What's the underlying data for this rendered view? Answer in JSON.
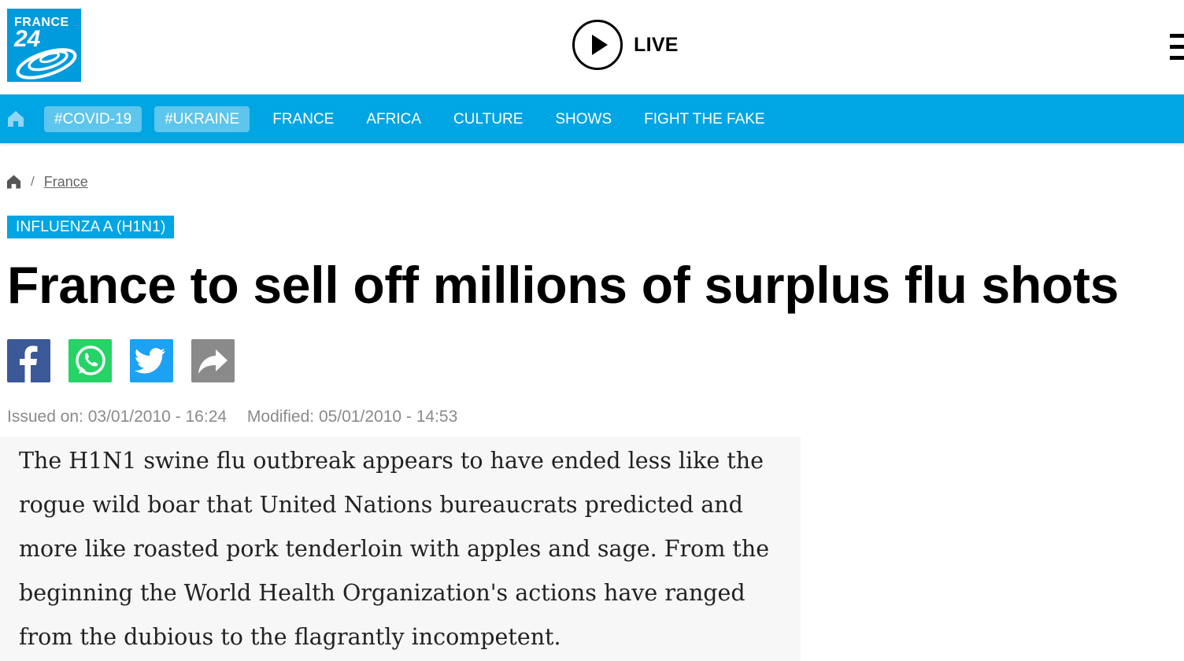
{
  "header": {
    "logo": {
      "line1": "FRANCE",
      "line2": "24"
    },
    "live_label": "LIVE",
    "icons": {
      "live": "play-icon",
      "menu": "hamburger-menu-icon"
    }
  },
  "nav": {
    "home_icon": "home-icon",
    "pills": [
      "#COVID-19",
      "#UKRAINE"
    ],
    "links": [
      "FRANCE",
      "AFRICA",
      "CULTURE",
      "SHOWS",
      "FIGHT THE FAKE"
    ],
    "colors": {
      "bar": "#00a5e3",
      "pill": "#5ec5ec"
    }
  },
  "breadcrumb": {
    "home_icon": "home-icon",
    "separator": "/",
    "current": "France"
  },
  "article": {
    "tag": "INFLUENZA A (H1N1)",
    "title": "France to sell off millions of surplus flu shots",
    "share": {
      "icons": [
        "facebook-icon",
        "whatsapp-icon",
        "twitter-icon",
        "share-icon"
      ],
      "colors": [
        "#3b5998",
        "#25d366",
        "#1da1f2",
        "#8a8a8a"
      ]
    },
    "issued": "Issued on: 03/01/2010 - 16:24",
    "modified": "Modified: 05/01/2010 - 14:53",
    "lead": "The H1N1 swine flu outbreak appears to have ended less like the rogue wild boar that United Nations bureaucrats predicted and more like roasted pork tenderloin with apples and sage. From the beginning the World Health Organization's actions have ranged from the dubious to the flagrantly incompetent."
  }
}
